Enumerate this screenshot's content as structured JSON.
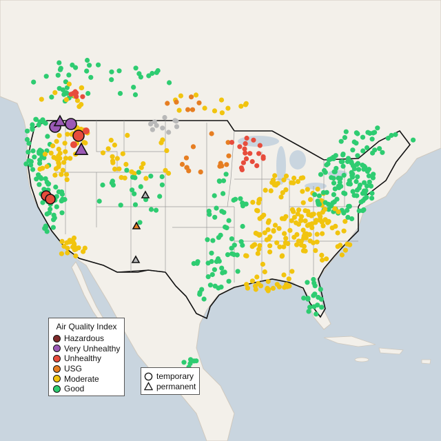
{
  "legend": {
    "title": "Air Quality Index",
    "categories": [
      {
        "label": "Hazardous",
        "color": "#7e2a2a"
      },
      {
        "label": "Very Unhealthy",
        "color": "#9b59b6"
      },
      {
        "label": "Unhealthy",
        "color": "#e74c3c"
      },
      {
        "label": "USG",
        "color": "#e67e22"
      },
      {
        "label": "Moderate",
        "color": "#f1c40f"
      },
      {
        "label": "Good",
        "color": "#2ecc71"
      }
    ]
  },
  "site_legend": {
    "temporary_label": "temporary",
    "permanent_label": "permanent"
  },
  "colors": {
    "water": "#c9d5df",
    "land": "#f3f0ea",
    "nodata": "#b8b8b8"
  }
}
